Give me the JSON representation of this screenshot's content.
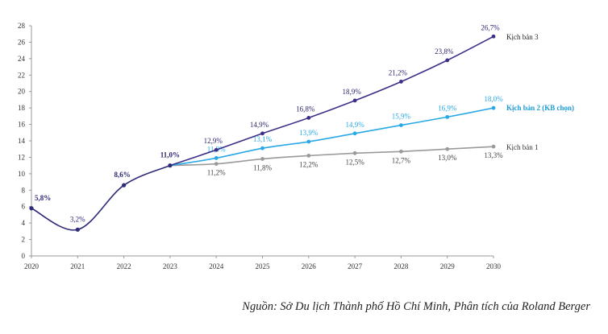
{
  "chart_data": {
    "type": "line",
    "x": [
      "2020",
      "2021",
      "2022",
      "2023",
      "2024",
      "2025",
      "2026",
      "2027",
      "2028",
      "2029",
      "2030"
    ],
    "ylim": [
      0,
      28
    ],
    "yticks": [
      "0",
      "2",
      "4",
      "6",
      "8",
      "10",
      "12",
      "14",
      "16",
      "18",
      "20",
      "22",
      "24",
      "26",
      "28"
    ],
    "grid": false,
    "historical": {
      "x": [
        "2020",
        "2021",
        "2022",
        "2023"
      ],
      "values": [
        5.8,
        3.2,
        8.6,
        11.0
      ],
      "labels": [
        "5,8%",
        "3,2%",
        "8,6%",
        "11,0%"
      ],
      "color": "#2e2a7a"
    },
    "series": [
      {
        "name": "Kịch bản 3",
        "x": [
          "2023",
          "2024",
          "2025",
          "2026",
          "2027",
          "2028",
          "2029",
          "2030"
        ],
        "values": [
          11.0,
          12.9,
          14.9,
          16.8,
          18.9,
          21.2,
          23.8,
          26.7
        ],
        "labels": [
          "",
          "12,9%",
          "14,9%",
          "16,8%",
          "18,9%",
          "21,2%",
          "23,8%",
          "26,7%"
        ],
        "color": "#3b2f87"
      },
      {
        "name": "Kịch bản 2 (KB chọn)",
        "x": [
          "2023",
          "2024",
          "2025",
          "2026",
          "2027",
          "2028",
          "2029",
          "2030"
        ],
        "values": [
          11.0,
          11.9,
          13.1,
          13.9,
          14.9,
          15.9,
          16.9,
          18.0
        ],
        "labels": [
          "",
          "11,9%",
          "13,1%",
          "13,9%",
          "14,9%",
          "15,9%",
          "16,9%",
          "18,0%"
        ],
        "color": "#29a8e6"
      },
      {
        "name": "Kịch bản 1",
        "x": [
          "2023",
          "2024",
          "2025",
          "2026",
          "2027",
          "2028",
          "2029",
          "2030"
        ],
        "values": [
          11.0,
          11.2,
          11.8,
          12.2,
          12.5,
          12.7,
          13.0,
          13.3
        ],
        "labels": [
          "",
          "11,2%",
          "11,8%",
          "12,2%",
          "12,5%",
          "12,7%",
          "13,0%",
          "13,3%"
        ],
        "color": "#9a9a9a"
      }
    ]
  },
  "source_note": "Nguồn: Sở Du lịch Thành phố Hồ Chí Minh, Phân tích của Roland Berger"
}
